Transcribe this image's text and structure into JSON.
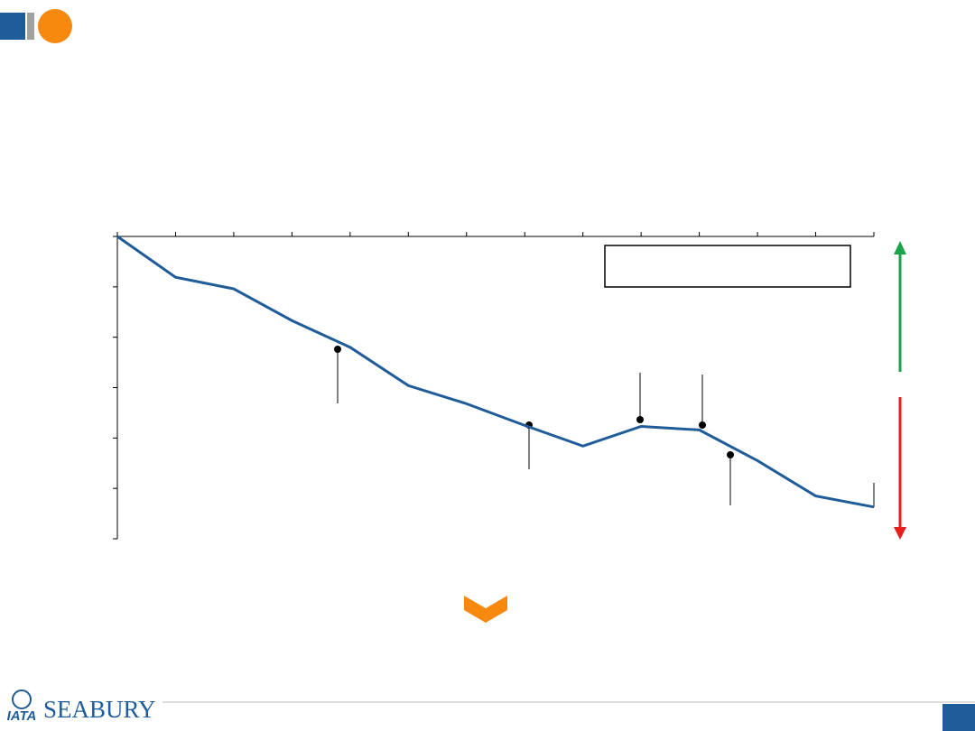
{
  "logo": {
    "name": "SEABURY",
    "mark": "IATA"
  },
  "chart_data": {
    "type": "line",
    "categories": [
      null,
      null,
      null,
      null,
      null,
      null,
      null,
      null,
      null,
      null,
      null,
      null,
      null,
      null
    ],
    "series": [
      {
        "color": "#1f5c99",
        "values": [
          0,
          0.81,
          1.04,
          1.67,
          2.2,
          2.96,
          3.32,
          3.75,
          4.16,
          3.77,
          3.84,
          4.45,
          5.15,
          5.37
        ]
      }
    ],
    "ylim": [
      0,
      6
    ],
    "yticks": [
      0,
      1,
      2,
      3,
      4,
      5,
      6
    ],
    "y_reversed": true
  }
}
